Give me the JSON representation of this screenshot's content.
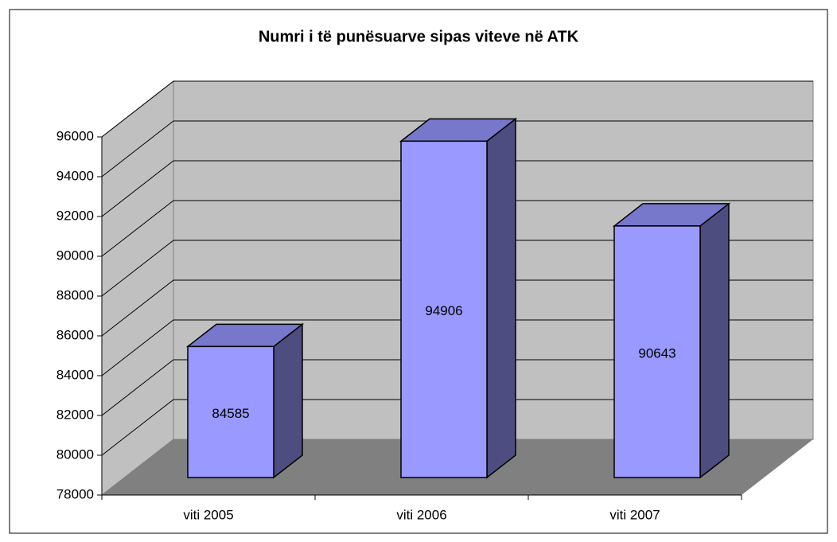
{
  "chart_data": {
    "type": "bar3d",
    "title": "Numri i të punësuarve sipas viteve në ATK",
    "categories": [
      "viti 2005",
      "viti 2006",
      "viti 2007"
    ],
    "values": [
      84585,
      94906,
      90643
    ],
    "color": "#9999ff",
    "ylim": [
      78000,
      96000
    ],
    "yticks": [
      78000,
      80000,
      82000,
      84000,
      86000,
      88000,
      90000,
      92000,
      94000,
      96000
    ],
    "grid": true
  }
}
